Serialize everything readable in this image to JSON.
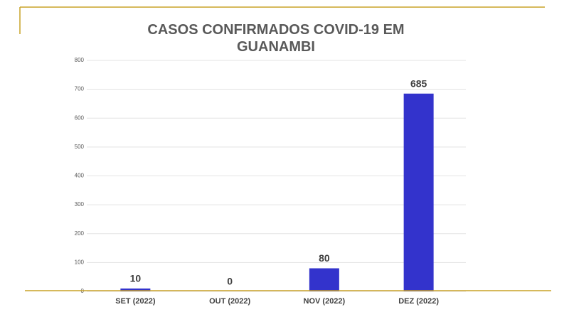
{
  "chart_data": {
    "type": "bar",
    "title": "CASOS CONFIRMADOS COVID-19 EM GUANAMBI",
    "categories": [
      "SET (2022)",
      "OUT (2022)",
      "NOV (2022)",
      "DEZ (2022)"
    ],
    "values": [
      10,
      0,
      80,
      685
    ],
    "color": "#3333cc",
    "ylim": [
      0,
      800
    ],
    "yticks": [
      0,
      100,
      200,
      300,
      400,
      500,
      600,
      700,
      800
    ],
    "grid": true
  }
}
